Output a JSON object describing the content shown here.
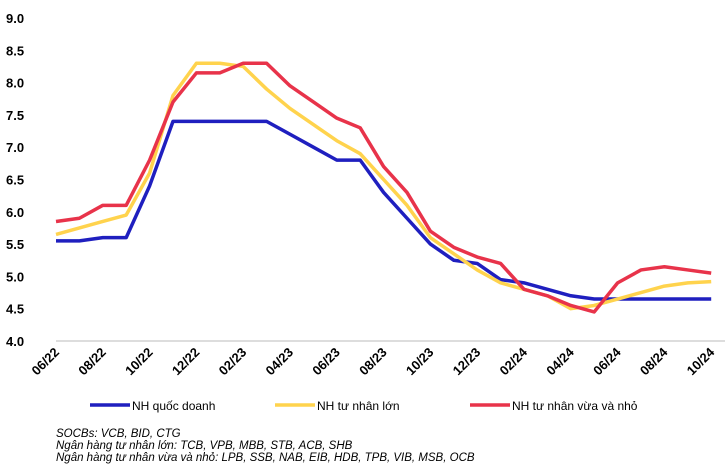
{
  "chart_data": {
    "type": "line",
    "categories": [
      "06/22",
      null,
      "08/22",
      null,
      "10/22",
      null,
      "12/22",
      null,
      "02/23",
      null,
      "04/23",
      null,
      "06/23",
      null,
      "08/23",
      null,
      "10/23",
      null,
      "12/23",
      null,
      "02/24",
      null,
      "04/24",
      null,
      "06/24",
      null,
      "08/24",
      null,
      "10/24"
    ],
    "series": [
      {
        "name": "NH quốc doanh",
        "color": "#1f1fbf",
        "values": [
          5.55,
          5.55,
          5.6,
          5.6,
          6.4,
          7.4,
          7.4,
          7.4,
          7.4,
          7.4,
          7.2,
          7.0,
          6.8,
          6.8,
          6.3,
          5.9,
          5.5,
          5.25,
          5.2,
          4.95,
          4.9,
          4.8,
          4.7,
          4.65,
          4.65,
          4.65,
          4.65,
          4.65,
          4.65
        ]
      },
      {
        "name": "NH tư nhân lớn",
        "color": "#ffd34d",
        "values": [
          5.65,
          5.75,
          5.85,
          5.95,
          6.6,
          7.8,
          8.3,
          8.3,
          8.25,
          7.9,
          7.6,
          7.35,
          7.1,
          6.9,
          6.5,
          6.1,
          5.6,
          5.35,
          5.1,
          4.9,
          4.8,
          4.7,
          4.5,
          4.55,
          4.65,
          4.75,
          4.85,
          4.9,
          4.92
        ]
      },
      {
        "name": "NH tư nhân vừa và nhỏ",
        "color": "#e8334a",
        "values": [
          5.85,
          5.9,
          6.1,
          6.1,
          6.8,
          7.7,
          8.15,
          8.15,
          8.3,
          8.3,
          7.95,
          7.7,
          7.45,
          7.3,
          6.7,
          6.3,
          5.7,
          5.45,
          5.3,
          5.2,
          4.8,
          4.7,
          4.55,
          4.45,
          4.9,
          5.1,
          5.15,
          5.1,
          5.05
        ]
      }
    ],
    "ylim": [
      4.0,
      9.0
    ],
    "yticks": [
      {
        "value": 4.0,
        "label": "4.0"
      },
      {
        "value": 4.5,
        "label": "4.5"
      },
      {
        "value": 5.0,
        "label": "5.0"
      },
      {
        "value": 5.5,
        "label": "5.5"
      },
      {
        "value": 6.0,
        "label": "6.0"
      },
      {
        "value": 6.5,
        "label": "6.5"
      },
      {
        "value": 7.0,
        "label": "7.0"
      },
      {
        "value": 7.5,
        "label": "7.5"
      },
      {
        "value": 8.0,
        "label": "8.0"
      },
      {
        "value": 8.5,
        "label": "8.5"
      },
      {
        "value": 9.0,
        "label": "9.0"
      }
    ],
    "notes": [
      "SOCBs: VCB, BID, CTG",
      "Ngân hàng tư nhân lớn: TCB, VPB, MBB, STB, ACB, SHB",
      "Ngân hàng tư nhân vừa và nhỏ: LPB, SSB, NAB, EIB, HDB, TPB, VIB, MSB, OCB"
    ]
  }
}
